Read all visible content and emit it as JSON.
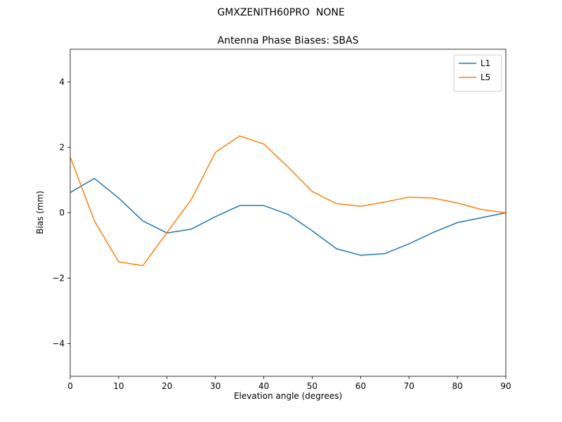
{
  "figure": {
    "suptitle": "GMXZENITH60PRO  NONE",
    "title": "Antenna Phase Biases: SBAS"
  },
  "chart_data": {
    "type": "line",
    "suptitle": "GMXZENITH60PRO  NONE",
    "title": "Antenna Phase Biases: SBAS",
    "xlabel": "Elevation angle (degrees)",
    "ylabel": "Bias (mm)",
    "xlim": [
      0,
      90
    ],
    "ylim": [
      -5,
      5
    ],
    "xticks": [
      0,
      10,
      20,
      30,
      40,
      50,
      60,
      70,
      80,
      90
    ],
    "yticks": [
      -4,
      -2,
      0,
      2,
      4
    ],
    "yticklabels": [
      "−4",
      "−2",
      "0",
      "2",
      "4"
    ],
    "grid": false,
    "legend_position": "upper right",
    "x": [
      0,
      5,
      10,
      15,
      20,
      25,
      30,
      35,
      40,
      45,
      50,
      55,
      60,
      65,
      70,
      75,
      80,
      85,
      90
    ],
    "series": [
      {
        "name": "L1",
        "color": "#1f77b4",
        "values": [
          0.62,
          1.05,
          0.45,
          -0.25,
          -0.62,
          -0.5,
          -0.12,
          0.22,
          0.22,
          -0.05,
          -0.55,
          -1.1,
          -1.3,
          -1.25,
          -0.95,
          -0.6,
          -0.3,
          -0.15,
          0.0
        ]
      },
      {
        "name": "L5",
        "color": "#ff7f0e",
        "values": [
          1.7,
          -0.25,
          -1.5,
          -1.62,
          -0.6,
          0.4,
          1.85,
          2.35,
          2.1,
          1.4,
          0.65,
          0.28,
          0.2,
          0.33,
          0.48,
          0.45,
          0.3,
          0.1,
          0.0
        ]
      }
    ]
  }
}
